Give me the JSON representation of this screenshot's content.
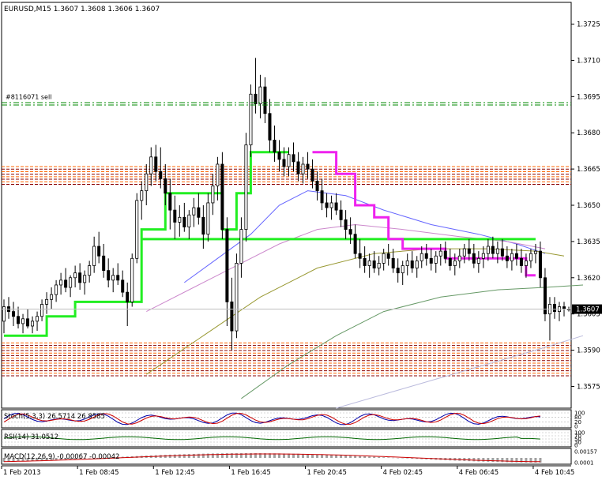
{
  "chart_data": {
    "type": "candlestick",
    "title": "EURUSD,M15  1.3607 1.3608 1.3606 1.3607",
    "symbol": "EURUSD",
    "timeframe": "M15",
    "ohlc_label": "1.3607 1.3608 1.3606 1.3607",
    "current_price": 1.3607,
    "current_price_label": "1.3607",
    "yaxis": {
      "ylim": [
        1.3566,
        1.3734
      ],
      "ticks": [
        1.3575,
        1.359,
        1.3605,
        1.362,
        1.3635,
        1.365,
        1.3665,
        1.368,
        1.3695,
        1.371,
        1.3725
      ],
      "tick_labels": [
        "1.3575",
        "1.3590",
        "1.3605",
        "1.3620",
        "1.3635",
        "1.3650",
        "1.3665",
        "1.3680",
        "1.3695",
        "1.3710",
        "1.3725"
      ]
    },
    "xaxis": {
      "n_bars": 120,
      "tick_labels": [
        "1 Feb 2013",
        "1 Feb 08:45",
        "1 Feb 12:45",
        "1 Feb 16:45",
        "1 Feb 20:45",
        "4 Feb 02:45",
        "4 Feb 06:45",
        "4 Feb 10:45"
      ],
      "tick_bars": [
        0,
        16,
        32,
        48,
        64,
        80,
        96,
        112
      ]
    },
    "candles": [
      [
        1.3602,
        1.3611,
        1.3597,
        1.3608
      ],
      [
        1.3608,
        1.3612,
        1.3603,
        1.3606
      ],
      [
        1.3606,
        1.361,
        1.36,
        1.3604
      ],
      [
        1.3604,
        1.3608,
        1.3599,
        1.3601
      ],
      [
        1.3601,
        1.3605,
        1.3597,
        1.3603
      ],
      [
        1.3603,
        1.3607,
        1.3599,
        1.36
      ],
      [
        1.36,
        1.3604,
        1.3597,
        1.3602
      ],
      [
        1.3602,
        1.3606,
        1.3598,
        1.3604
      ],
      [
        1.3604,
        1.3611,
        1.3602,
        1.3609
      ],
      [
        1.3609,
        1.3614,
        1.3605,
        1.3611
      ],
      [
        1.3611,
        1.3616,
        1.3607,
        1.3613
      ],
      [
        1.3613,
        1.3619,
        1.361,
        1.3617
      ],
      [
        1.3617,
        1.3622,
        1.3613,
        1.3619
      ],
      [
        1.3619,
        1.3624,
        1.3614,
        1.3616
      ],
      [
        1.3616,
        1.3621,
        1.3612,
        1.362
      ],
      [
        1.362,
        1.3625,
        1.3616,
        1.3622
      ],
      [
        1.3622,
        1.3626,
        1.3615,
        1.3618
      ],
      [
        1.3618,
        1.3623,
        1.3613,
        1.3621
      ],
      [
        1.3621,
        1.3627,
        1.3618,
        1.3625
      ],
      [
        1.3625,
        1.3637,
        1.3622,
        1.3633
      ],
      [
        1.3633,
        1.3639,
        1.3626,
        1.3629
      ],
      [
        1.3629,
        1.3634,
        1.362,
        1.3623
      ],
      [
        1.3623,
        1.3628,
        1.3616,
        1.3619
      ],
      [
        1.3619,
        1.3624,
        1.3614,
        1.3621
      ],
      [
        1.3621,
        1.3626,
        1.3617,
        1.3619
      ],
      [
        1.3619,
        1.3623,
        1.3612,
        1.3614
      ],
      [
        1.3614,
        1.3618,
        1.36,
        1.361
      ],
      [
        1.361,
        1.363,
        1.3608,
        1.3628
      ],
      [
        1.3628,
        1.3655,
        1.3626,
        1.3652
      ],
      [
        1.3652,
        1.366,
        1.3644,
        1.3656
      ],
      [
        1.3656,
        1.3667,
        1.365,
        1.3663
      ],
      [
        1.3663,
        1.3674,
        1.3658,
        1.367
      ],
      [
        1.367,
        1.3675,
        1.366,
        1.3664
      ],
      [
        1.3664,
        1.3674,
        1.3657,
        1.3661
      ],
      [
        1.3661,
        1.3667,
        1.365,
        1.3655
      ],
      [
        1.3655,
        1.3661,
        1.364,
        1.3648
      ],
      [
        1.3648,
        1.3654,
        1.3636,
        1.3643
      ],
      [
        1.3643,
        1.365,
        1.3637,
        1.3645
      ],
      [
        1.3645,
        1.3651,
        1.3639,
        1.3641
      ],
      [
        1.3641,
        1.3648,
        1.3636,
        1.3646
      ],
      [
        1.3646,
        1.3653,
        1.3641,
        1.3649
      ],
      [
        1.3649,
        1.3655,
        1.3642,
        1.3645
      ],
      [
        1.3645,
        1.365,
        1.3632,
        1.3638
      ],
      [
        1.3638,
        1.3655,
        1.3635,
        1.3651
      ],
      [
        1.3651,
        1.3663,
        1.3646,
        1.3658
      ],
      [
        1.3658,
        1.367,
        1.3652,
        1.3667
      ],
      [
        1.3667,
        1.3672,
        1.3636,
        1.364
      ],
      [
        1.364,
        1.3645,
        1.36,
        1.361
      ],
      [
        1.361,
        1.362,
        1.359,
        1.3598
      ],
      [
        1.3598,
        1.363,
        1.3595,
        1.3626
      ],
      [
        1.3626,
        1.3645,
        1.362,
        1.364
      ],
      [
        1.364,
        1.368,
        1.3635,
        1.3675
      ],
      [
        1.3675,
        1.37,
        1.367,
        1.3696
      ],
      [
        1.3696,
        1.3711,
        1.3688,
        1.3692
      ],
      [
        1.3692,
        1.3704,
        1.3686,
        1.3699
      ],
      [
        1.3699,
        1.3703,
        1.3684,
        1.3688
      ],
      [
        1.3688,
        1.3694,
        1.3672,
        1.3677
      ],
      [
        1.3677,
        1.3683,
        1.3668,
        1.3672
      ],
      [
        1.3672,
        1.3677,
        1.3664,
        1.3669
      ],
      [
        1.3669,
        1.3674,
        1.3662,
        1.3666
      ],
      [
        1.3666,
        1.3674,
        1.3662,
        1.3671
      ],
      [
        1.3671,
        1.3676,
        1.3664,
        1.3668
      ],
      [
        1.3668,
        1.3672,
        1.366,
        1.3663
      ],
      [
        1.3663,
        1.367,
        1.3659,
        1.3667
      ],
      [
        1.3667,
        1.3672,
        1.3661,
        1.3665
      ],
      [
        1.3665,
        1.3669,
        1.3657,
        1.366
      ],
      [
        1.366,
        1.3664,
        1.3652,
        1.3656
      ],
      [
        1.3656,
        1.3661,
        1.3648,
        1.3651
      ],
      [
        1.3651,
        1.3655,
        1.3645,
        1.3649
      ],
      [
        1.3649,
        1.3654,
        1.3644,
        1.3651
      ],
      [
        1.3651,
        1.3655,
        1.3646,
        1.3648
      ],
      [
        1.3648,
        1.3652,
        1.3641,
        1.3644
      ],
      [
        1.3644,
        1.3648,
        1.3636,
        1.364
      ],
      [
        1.364,
        1.3645,
        1.3634,
        1.3638
      ],
      [
        1.3638,
        1.3642,
        1.3628,
        1.363
      ],
      [
        1.363,
        1.3636,
        1.3624,
        1.3628
      ],
      [
        1.3628,
        1.3633,
        1.3622,
        1.3625
      ],
      [
        1.3625,
        1.363,
        1.362,
        1.3627
      ],
      [
        1.3627,
        1.3631,
        1.3622,
        1.3624
      ],
      [
        1.3624,
        1.3629,
        1.3621,
        1.3626
      ],
      [
        1.3626,
        1.3632,
        1.3623,
        1.363
      ],
      [
        1.363,
        1.3634,
        1.3625,
        1.3628
      ],
      [
        1.3628,
        1.3632,
        1.3622,
        1.3624
      ],
      [
        1.3624,
        1.3628,
        1.3618,
        1.3622
      ],
      [
        1.3622,
        1.3627,
        1.3617,
        1.3625
      ],
      [
        1.3625,
        1.363,
        1.3621,
        1.3627
      ],
      [
        1.3627,
        1.3631,
        1.3622,
        1.3624
      ],
      [
        1.3624,
        1.3629,
        1.362,
        1.3627
      ],
      [
        1.3627,
        1.3633,
        1.3624,
        1.363
      ],
      [
        1.363,
        1.3634,
        1.3625,
        1.3628
      ],
      [
        1.3628,
        1.3632,
        1.3623,
        1.3626
      ],
      [
        1.3626,
        1.3631,
        1.3622,
        1.3629
      ],
      [
        1.3629,
        1.3634,
        1.3625,
        1.3631
      ],
      [
        1.3631,
        1.3635,
        1.3626,
        1.3628
      ],
      [
        1.3628,
        1.3632,
        1.3623,
        1.3625
      ],
      [
        1.3625,
        1.363,
        1.3621,
        1.3627
      ],
      [
        1.3627,
        1.3632,
        1.3624,
        1.3629
      ],
      [
        1.3629,
        1.3634,
        1.3626,
        1.3632
      ],
      [
        1.3632,
        1.3636,
        1.3627,
        1.363
      ],
      [
        1.363,
        1.3634,
        1.3624,
        1.3626
      ],
      [
        1.3626,
        1.3631,
        1.3622,
        1.3628
      ],
      [
        1.3628,
        1.3633,
        1.3624,
        1.363
      ],
      [
        1.363,
        1.3636,
        1.3627,
        1.3633
      ],
      [
        1.3633,
        1.3637,
        1.3628,
        1.363
      ],
      [
        1.363,
        1.3635,
        1.3626,
        1.3632
      ],
      [
        1.3632,
        1.3636,
        1.3627,
        1.3629
      ],
      [
        1.3629,
        1.3633,
        1.3624,
        1.3627
      ],
      [
        1.3627,
        1.3632,
        1.3623,
        1.363
      ],
      [
        1.363,
        1.3634,
        1.3625,
        1.3628
      ],
      [
        1.3628,
        1.3632,
        1.3622,
        1.3625
      ],
      [
        1.3625,
        1.363,
        1.362,
        1.3627
      ],
      [
        1.3627,
        1.3632,
        1.3624,
        1.363
      ],
      [
        1.363,
        1.3634,
        1.3626,
        1.3631
      ],
      [
        1.3631,
        1.3635,
        1.3616,
        1.362
      ],
      [
        1.362,
        1.3624,
        1.3602,
        1.3605
      ],
      [
        1.3605,
        1.3612,
        1.3594,
        1.3609
      ],
      [
        1.3609,
        1.3612,
        1.3603,
        1.3606
      ],
      [
        1.3606,
        1.361,
        1.3602,
        1.3608
      ],
      [
        1.3608,
        1.361,
        1.3604,
        1.3607
      ],
      [
        1.3607,
        1.3608,
        1.3606,
        1.3607
      ]
    ],
    "sell_order": {
      "label": "#8116071 sell",
      "price": 1.3692
    },
    "zones": {
      "resistance_top": 1.3666,
      "resistance_bottom": 1.3658,
      "support_top": 1.3593,
      "support_bottom": 1.3579,
      "colors": [
        "#ff6600",
        "#8b0000"
      ]
    },
    "green_stop_segments": [
      [
        0,
        9,
        1.3596
      ],
      [
        9,
        15,
        1.3604
      ],
      [
        15,
        29,
        1.361
      ],
      [
        29,
        34,
        1.364
      ],
      [
        34,
        46,
        1.3655
      ],
      [
        46,
        49,
        1.364
      ],
      [
        49,
        52,
        1.3655
      ],
      [
        52,
        60,
        1.3672
      ]
    ],
    "green_level_line": {
      "from": 29,
      "to": 112,
      "price": 1.3636
    },
    "magenta_stop_segments": [
      [
        65,
        70,
        1.3672
      ],
      [
        70,
        74,
        1.3663
      ],
      [
        74,
        78,
        1.365
      ],
      [
        78,
        81,
        1.3645
      ],
      [
        81,
        84,
        1.3636
      ],
      [
        84,
        93,
        1.3632
      ],
      [
        93,
        110,
        1.3628
      ],
      [
        110,
        112,
        1.3621
      ]
    ],
    "moving_averages": [
      {
        "color": "#6666ff",
        "points": [
          [
            38,
            1.3618
          ],
          [
            45,
            1.3628
          ],
          [
            52,
            1.3638
          ],
          [
            58,
            1.365
          ],
          [
            64,
            1.3656
          ],
          [
            72,
            1.3654
          ],
          [
            80,
            1.3648
          ],
          [
            90,
            1.3642
          ],
          [
            100,
            1.3638
          ],
          [
            108,
            1.3634
          ],
          [
            114,
            1.363
          ]
        ]
      },
      {
        "color": "#cc88cc",
        "points": [
          [
            30,
            1.3606
          ],
          [
            40,
            1.3616
          ],
          [
            50,
            1.3626
          ],
          [
            58,
            1.3634
          ],
          [
            66,
            1.364
          ],
          [
            74,
            1.3642
          ],
          [
            84,
            1.364
          ],
          [
            96,
            1.3637
          ],
          [
            106,
            1.3635
          ],
          [
            114,
            1.3632
          ]
        ]
      },
      {
        "color": "#999933",
        "points": [
          [
            30,
            1.358
          ],
          [
            42,
            1.3596
          ],
          [
            54,
            1.3612
          ],
          [
            66,
            1.3624
          ],
          [
            78,
            1.363
          ],
          [
            90,
            1.3632
          ],
          [
            102,
            1.3632
          ],
          [
            112,
            1.3631
          ],
          [
            118,
            1.3629
          ]
        ]
      },
      {
        "color": "#669966",
        "points": [
          [
            50,
            1.357
          ],
          [
            60,
            1.3584
          ],
          [
            70,
            1.3596
          ],
          [
            80,
            1.3606
          ],
          [
            92,
            1.3612
          ],
          [
            104,
            1.3615
          ],
          [
            114,
            1.3616
          ],
          [
            122,
            1.3617
          ]
        ]
      },
      {
        "color": "#bbbbdd",
        "points": [
          [
            70,
            1.3566
          ],
          [
            84,
            1.3574
          ],
          [
            98,
            1.3582
          ],
          [
            112,
            1.359
          ],
          [
            122,
            1.3596
          ]
        ]
      }
    ],
    "indicators": {
      "stoch": {
        "label": "Stoch(5,3,3) 26.5714 26.8585",
        "ticks": [
          "100",
          "80",
          "20",
          "0"
        ]
      },
      "rsi": {
        "label": "RSI(14) 31.0512",
        "ticks": [
          "100",
          "70",
          "50",
          "30",
          "0"
        ]
      },
      "macd": {
        "label": "MACD(12,26,9) -0.00067 -0.00042",
        "ticks": [
          "0.00157",
          "0.0001"
        ]
      }
    },
    "colors": {
      "candle": "#000000",
      "green_stop": "#22ee22",
      "magenta_stop": "#ee22ee",
      "sell_line": "#008800",
      "grid": "#c0c0c0"
    }
  }
}
